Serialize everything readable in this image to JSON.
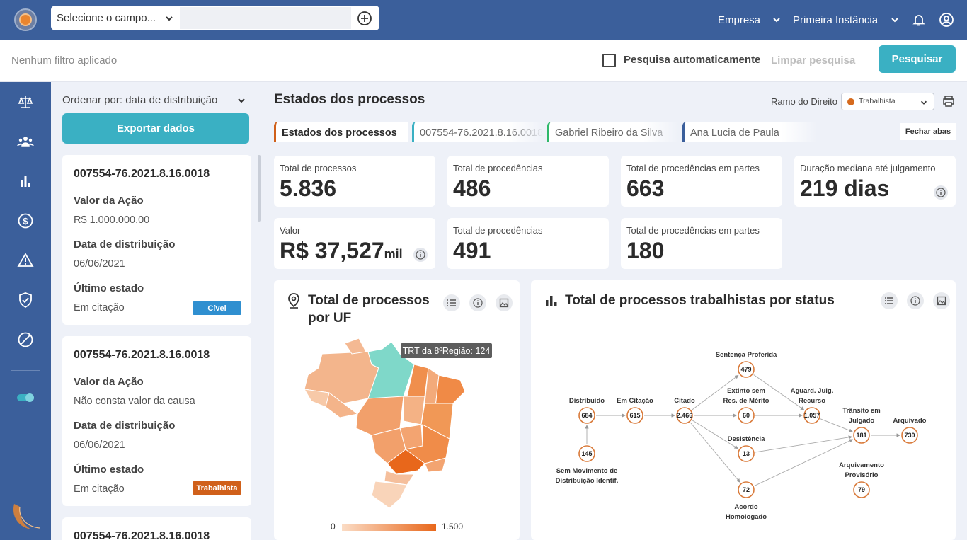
{
  "header": {
    "field_select_placeholder": "Selecione o campo...",
    "company_label": "Empresa",
    "instance_label": "Primeira Instância"
  },
  "filterbar": {
    "no_filter_text": "Nenhum filtro aplicado",
    "auto_search_label": "Pesquisa automaticamente",
    "auto_search_checked": false,
    "clear_label": "Limpar pesquisa",
    "search_label": "Pesquisar"
  },
  "sidebar": {
    "icons": [
      "scale-icon",
      "users-icon",
      "bar-chart-icon",
      "dollar-icon",
      "warning-icon",
      "shield-check-icon",
      "blocked-icon",
      "toggle-icon"
    ]
  },
  "list": {
    "sort_label": "Ordenar por: data de distribuição",
    "export_label": "Exportar dados",
    "cards": [
      {
        "id": "007554-76.2021.8.16.0018",
        "value_label": "Valor da Ação",
        "value": "R$ 1.000.000,00",
        "date_label": "Data de distribuição",
        "date": "06/06/2021",
        "state_label": "Último estado",
        "state": "Em citação",
        "badge": "Cível",
        "badge_color": "#2f8fd0"
      },
      {
        "id": "007554-76.2021.8.16.0018",
        "value_label": "Valor da Ação",
        "value": "Não consta valor da causa",
        "date_label": "Data de distribuição",
        "date": "06/06/2021",
        "state_label": "Último estado",
        "state": "Em citação",
        "badge": "Trabalhista",
        "badge_color": "#d0601a"
      },
      {
        "id": "007554-76.2021.8.16.0018"
      }
    ]
  },
  "main": {
    "title": "Estados dos processos",
    "ramo_label": "Ramo do Direito",
    "ramo_value": "Trabalhista",
    "ramo_color": "#d56a1e",
    "tabs": [
      {
        "label": "Estados dos processos",
        "color": "#d0601a"
      },
      {
        "label": "007554-76.2021.8.16.0018",
        "color": "#3ab0c3"
      },
      {
        "label": "Gabriel Ribeiro da Silva",
        "color": "#2fb86a"
      },
      {
        "label": "Ana Lucia de Paula",
        "color": "#3b5f9b"
      }
    ],
    "close_tabs_label": "Fechar abas",
    "kpis": [
      {
        "label": "Total de processos",
        "value": "5.836"
      },
      {
        "label": "Total de procedências",
        "value": "486"
      },
      {
        "label": "Total de procedências em partes",
        "value": "663"
      },
      {
        "label": "Duração mediana até julgamento",
        "value": "219 dias"
      },
      {
        "label": "Valor",
        "value": "R$ 37,527",
        "unit": "mil"
      },
      {
        "label": "Total de procedências",
        "value": "491"
      },
      {
        "label": "Total de procedências em partes",
        "value": "180"
      }
    ]
  },
  "map_panel": {
    "title_line1": "Total de processos",
    "title_line2": "por UF",
    "tooltip": "TRT da 8ºRegião: 124",
    "legend_min": "0",
    "legend_max": "1.500"
  },
  "flow_panel": {
    "title": "Total de processos trabalhistas por status",
    "nodes": [
      {
        "key": "distribuido",
        "label": [
          "Distribuído"
        ],
        "value": "684"
      },
      {
        "key": "citacao",
        "label": [
          "Em Citação"
        ],
        "value": "615"
      },
      {
        "key": "citado",
        "label": [
          "Citado"
        ],
        "value": "2.466"
      },
      {
        "key": "sentenca",
        "label": [
          "Sentença Proferida"
        ],
        "value": "479"
      },
      {
        "key": "extinto",
        "label": [
          "Extinto sem",
          "Res. de Mérito"
        ],
        "value": "60"
      },
      {
        "key": "desistencia",
        "label": [
          "Desistência"
        ],
        "value": "13"
      },
      {
        "key": "acordo",
        "label": [
          "Acordo",
          "Homologado"
        ],
        "value": "72"
      },
      {
        "key": "aguard",
        "label": [
          "Aguard. Julg.",
          "Recurso"
        ],
        "value": "1.057"
      },
      {
        "key": "transito",
        "label": [
          "Trânsito em",
          "Julgado"
        ],
        "value": "181"
      },
      {
        "key": "arquivado",
        "label": [
          "Arquivado"
        ],
        "value": "730"
      },
      {
        "key": "provisorio",
        "label": [
          "Arquivamento",
          "Provisório"
        ],
        "value": "79"
      },
      {
        "key": "semmov",
        "label": [
          "Sem Movimento de",
          "Distribuição Identif."
        ],
        "value": "145"
      }
    ]
  }
}
